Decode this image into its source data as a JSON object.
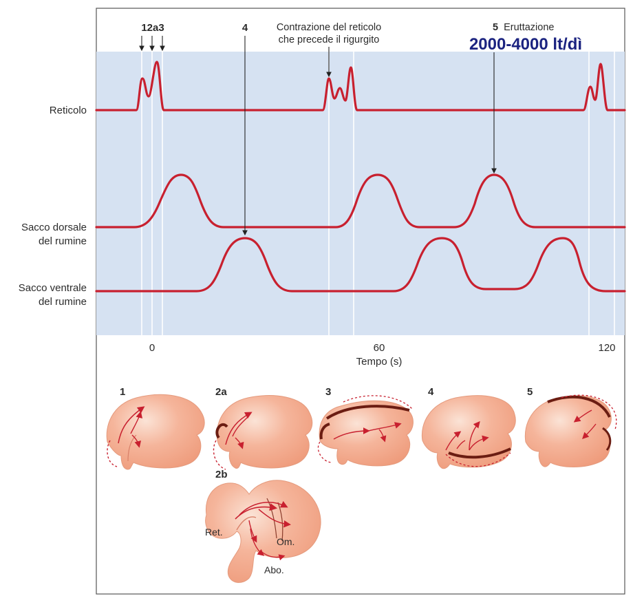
{
  "colors": {
    "panel": "#d6e2f2",
    "trace": "#c8202f",
    "organ": "#f2a98a",
    "organ_edge": "#e07f61",
    "wall": "#6b1d12",
    "accent_text": "#1b2380"
  },
  "markers": {
    "first": "12a3",
    "fourth": "4",
    "reticulum_note": [
      "Contrazione del reticolo",
      "che precede il rigurgito"
    ],
    "fifth_num": "5",
    "fifth_label": "Eruttazione",
    "volume": "2000-4000 lt/dì"
  },
  "traces": {
    "reticolo": [
      "Reticolo"
    ],
    "dorsale": [
      "Sacco dorsale",
      "del rumine"
    ],
    "ventrale": [
      "Sacco ventrale",
      "del rumine"
    ]
  },
  "axis": {
    "label": "Tempo (s)",
    "ticks": [
      "0",
      "60",
      "120"
    ]
  },
  "stages": {
    "s1": "1",
    "s2a": "2a",
    "s3": "3",
    "s4": "4",
    "s5": "5",
    "s2b": "2b",
    "ret": "Ret.",
    "om": "Om.",
    "abo": "Abo."
  }
}
